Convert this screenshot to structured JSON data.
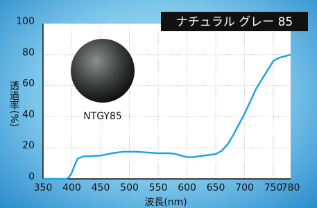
{
  "chart_data": {
    "type": "line",
    "title": "ナチュラル グレー 85",
    "annotation": "NTGY85",
    "x_label": "波長(nm)",
    "y_label": "透過率(%)",
    "x": [
      350,
      360,
      370,
      380,
      390,
      395,
      400,
      405,
      410,
      420,
      430,
      450,
      470,
      490,
      510,
      530,
      550,
      570,
      580,
      590,
      600,
      610,
      620,
      630,
      650,
      660,
      670,
      680,
      690,
      700,
      710,
      720,
      730,
      740,
      750,
      760,
      770,
      780
    ],
    "series": [
      {
        "name": "NTGY85",
        "color": "#1fa3e6",
        "values": [
          0,
          0,
          0,
          0,
          0,
          1,
          4,
          9,
          13,
          14.5,
          14.5,
          15,
          16.5,
          17.5,
          17.5,
          17,
          16.5,
          16.5,
          16,
          15,
          14,
          14,
          14.5,
          15,
          16,
          18,
          22,
          28,
          35,
          42,
          50,
          58,
          64,
          70,
          76,
          78,
          79,
          80
        ]
      }
    ],
    "xlim": [
      350,
      780
    ],
    "ylim": [
      0,
      100
    ],
    "xticks": [
      350,
      400,
      450,
      500,
      550,
      600,
      650,
      700,
      750,
      780
    ],
    "yticks": [
      0,
      20,
      40,
      60,
      80,
      100
    ],
    "grid": true
  }
}
